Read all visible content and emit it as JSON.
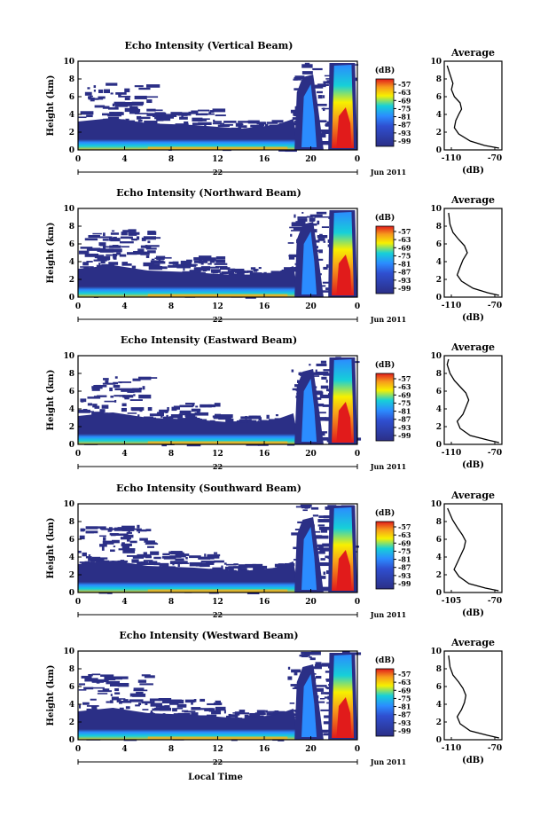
{
  "figure": {
    "xlabel": "Local Time",
    "date_label": "Jun 2011",
    "day_label": "22",
    "avg_title": "Average",
    "avg_xlabel": "(dB)",
    "cb_unit": "(dB)"
  },
  "colors": {
    "background": "#ffffff",
    "low": "#2b2f86",
    "mid": "#2b8cff",
    "cyan": "#16d0d8",
    "yellow": "#f7f000",
    "high": "#e11b1b"
  },
  "chart_data": [
    {
      "type": "heatmap",
      "title": "Echo Intensity (Vertical Beam)",
      "ylabel": "Height (km)",
      "xlim": [
        0,
        24
      ],
      "ylim": [
        0,
        10
      ],
      "xticks": [
        "0",
        "4",
        "8",
        "12",
        "16",
        "20",
        "0"
      ],
      "yticks": [
        "0",
        "2",
        "4",
        "6",
        "8",
        "10"
      ],
      "colorbar_ticks": [
        "-57",
        "-63",
        "-69",
        "-75",
        "-81",
        "-87",
        "-93",
        "-99"
      ],
      "average": {
        "xlim": [
          -110,
          -70
        ],
        "xticks": [
          "-110",
          "-70"
        ],
        "profile": [
          [
            -72,
            0.2
          ],
          [
            -82,
            0.5
          ],
          [
            -92,
            1.0
          ],
          [
            -100,
            1.8
          ],
          [
            -103,
            2.5
          ],
          [
            -102,
            3.3
          ],
          [
            -100,
            4.0
          ],
          [
            -98,
            4.6
          ],
          [
            -99,
            5.3
          ],
          [
            -103,
            6.0
          ],
          [
            -105,
            6.8
          ],
          [
            -104,
            7.5
          ],
          [
            -106,
            8.5
          ],
          [
            -108,
            9.5
          ]
        ]
      }
    },
    {
      "type": "heatmap",
      "title": "Echo Intensity (Northward Beam)",
      "ylabel": "Height (km)",
      "xlim": [
        0,
        24
      ],
      "ylim": [
        0,
        10
      ],
      "xticks": [
        "0",
        "4",
        "8",
        "12",
        "16",
        "20",
        "0"
      ],
      "yticks": [
        "0",
        "2",
        "4",
        "6",
        "8",
        "10"
      ],
      "colorbar_ticks": [
        "-57",
        "-63",
        "-69",
        "-75",
        "-81",
        "-87",
        "-93",
        "-99"
      ],
      "average": {
        "xlim": [
          -110,
          -70
        ],
        "xticks": [
          "-110",
          "-70"
        ],
        "profile": [
          [
            -72,
            0.2
          ],
          [
            -80,
            0.5
          ],
          [
            -90,
            1.0
          ],
          [
            -98,
            1.8
          ],
          [
            -101,
            2.5
          ],
          [
            -99,
            3.4
          ],
          [
            -97,
            4.2
          ],
          [
            -94,
            5.0
          ],
          [
            -96,
            5.8
          ],
          [
            -100,
            6.5
          ],
          [
            -104,
            7.3
          ],
          [
            -106,
            8.2
          ],
          [
            -107,
            9.5
          ]
        ]
      }
    },
    {
      "type": "heatmap",
      "title": "Echo Intensity (Eastward Beam)",
      "ylabel": "Height (km)",
      "xlim": [
        0,
        24
      ],
      "ylim": [
        0,
        10
      ],
      "xticks": [
        "0",
        "4",
        "8",
        "12",
        "16",
        "20",
        "0"
      ],
      "yticks": [
        "0",
        "2",
        "4",
        "6",
        "8",
        "10"
      ],
      "colorbar_ticks": [
        "-57",
        "-63",
        "-69",
        "-75",
        "-81",
        "-87",
        "-93",
        "-99"
      ],
      "average": {
        "xlim": [
          -110,
          -70
        ],
        "xticks": [
          "-110",
          "-70"
        ],
        "profile": [
          [
            -72,
            0.2
          ],
          [
            -80,
            0.5
          ],
          [
            -92,
            1.0
          ],
          [
            -99,
            1.8
          ],
          [
            -101,
            2.6
          ],
          [
            -97,
            3.4
          ],
          [
            -95,
            4.2
          ],
          [
            -93,
            5.0
          ],
          [
            -95,
            5.8
          ],
          [
            -99,
            6.5
          ],
          [
            -103,
            7.2
          ],
          [
            -106,
            8.0
          ],
          [
            -108,
            9.0
          ],
          [
            -107,
            9.6
          ]
        ]
      }
    },
    {
      "type": "heatmap",
      "title": "Echo Intensity (Southward Beam)",
      "ylabel": "Height (km)",
      "xlim": [
        0,
        24
      ],
      "ylim": [
        0,
        10
      ],
      "xticks": [
        "0",
        "4",
        "8",
        "12",
        "16",
        "20",
        "0"
      ],
      "yticks": [
        "0",
        "2",
        "4",
        "6",
        "8",
        "10"
      ],
      "colorbar_ticks": [
        "-57",
        "-63",
        "-69",
        "-75",
        "-81",
        "-87",
        "-93",
        "-99"
      ],
      "average": {
        "xlim": [
          -105,
          -70
        ],
        "xticks": [
          "-105",
          "-70"
        ],
        "profile": [
          [
            -72,
            0.2
          ],
          [
            -80,
            0.5
          ],
          [
            -90,
            1.0
          ],
          [
            -96,
            1.8
          ],
          [
            -99,
            2.6
          ],
          [
            -97,
            3.4
          ],
          [
            -95,
            4.2
          ],
          [
            -93,
            5.0
          ],
          [
            -92,
            5.8
          ],
          [
            -94,
            6.5
          ],
          [
            -97,
            7.3
          ],
          [
            -100,
            8.2
          ],
          [
            -103,
            9.5
          ]
        ]
      }
    },
    {
      "type": "heatmap",
      "title": "Echo Intensity (Westward Beam)",
      "ylabel": "Height (km)",
      "xlim": [
        0,
        24
      ],
      "ylim": [
        0,
        10
      ],
      "xticks": [
        "0",
        "4",
        "8",
        "12",
        "16",
        "20",
        "0"
      ],
      "yticks": [
        "0",
        "2",
        "4",
        "6",
        "8",
        "10"
      ],
      "colorbar_ticks": [
        "-57",
        "-63",
        "-69",
        "-75",
        "-81",
        "-87",
        "-93",
        "-99"
      ],
      "average": {
        "xlim": [
          -110,
          -70
        ],
        "xticks": [
          "-110",
          "-70"
        ],
        "profile": [
          [
            -72,
            0.2
          ],
          [
            -80,
            0.5
          ],
          [
            -92,
            1.0
          ],
          [
            -99,
            1.8
          ],
          [
            -101,
            2.6
          ],
          [
            -98,
            3.4
          ],
          [
            -96,
            4.2
          ],
          [
            -95,
            5.0
          ],
          [
            -97,
            5.8
          ],
          [
            -100,
            6.5
          ],
          [
            -104,
            7.3
          ],
          [
            -106,
            8.2
          ],
          [
            -107,
            9.5
          ]
        ]
      }
    }
  ]
}
